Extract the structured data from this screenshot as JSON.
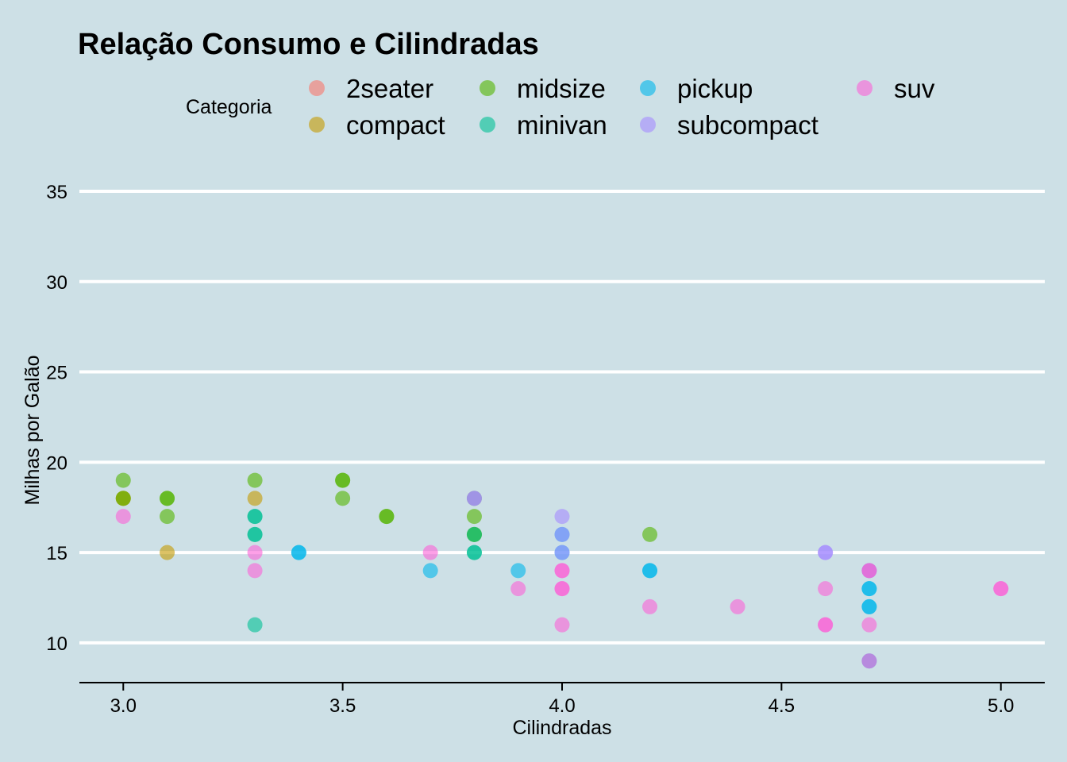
{
  "chart_data": {
    "type": "scatter",
    "title": "Relação Consumo e Cilindradas",
    "xlabel": "Cilindradas",
    "ylabel": "Milhas por Galão",
    "xlim": [
      2.9,
      5.1
    ],
    "ylim": [
      7.8,
      36.8
    ],
    "x_ticks": [
      "3.0",
      "3.5",
      "4.0",
      "4.5",
      "5.0"
    ],
    "x_tick_values": [
      3.0,
      3.5,
      4.0,
      4.5,
      5.0
    ],
    "y_ticks": [
      "10",
      "15",
      "20",
      "25",
      "30",
      "35"
    ],
    "y_tick_values": [
      10,
      15,
      20,
      25,
      30,
      35
    ],
    "grid": "horizontal major lines",
    "background": "#cde0e6",
    "legend": {
      "title": "Categoria",
      "position": "top",
      "entries": [
        "2seater",
        "compact",
        "midsize",
        "minivan",
        "pickup",
        "subcompact",
        "suv"
      ]
    },
    "series": [
      {
        "name": "2seater",
        "color": "#F8766D",
        "points": []
      },
      {
        "name": "compact",
        "color": "#C49A00",
        "points": [
          [
            3.0,
            18
          ],
          [
            3.0,
            18
          ],
          [
            3.1,
            15
          ],
          [
            3.3,
            18
          ]
        ]
      },
      {
        "name": "midsize",
        "color": "#53B400",
        "points": [
          [
            3.0,
            19
          ],
          [
            3.0,
            18
          ],
          [
            3.1,
            18
          ],
          [
            3.1,
            18
          ],
          [
            3.1,
            17
          ],
          [
            3.3,
            19
          ],
          [
            3.5,
            19
          ],
          [
            3.5,
            19
          ],
          [
            3.5,
            18
          ],
          [
            3.6,
            17
          ],
          [
            3.6,
            17
          ],
          [
            3.8,
            18
          ],
          [
            3.8,
            17
          ],
          [
            3.8,
            16
          ],
          [
            3.8,
            16
          ],
          [
            4.2,
            16
          ]
        ]
      },
      {
        "name": "minivan",
        "color": "#00C094",
        "points": [
          [
            3.3,
            17
          ],
          [
            3.3,
            17
          ],
          [
            3.3,
            16
          ],
          [
            3.3,
            16
          ],
          [
            3.3,
            11
          ],
          [
            3.8,
            15
          ],
          [
            3.8,
            15
          ],
          [
            3.8,
            16
          ]
        ]
      },
      {
        "name": "pickup",
        "color": "#00B6EB",
        "points": [
          [
            3.4,
            15
          ],
          [
            3.4,
            15
          ],
          [
            3.7,
            14
          ],
          [
            3.9,
            14
          ],
          [
            4.0,
            15
          ],
          [
            4.0,
            16
          ],
          [
            4.2,
            14
          ],
          [
            4.2,
            14
          ],
          [
            4.7,
            13
          ],
          [
            4.7,
            13
          ],
          [
            4.7,
            12
          ],
          [
            4.7,
            12
          ],
          [
            4.7,
            14
          ],
          [
            4.7,
            9
          ]
        ]
      },
      {
        "name": "subcompact",
        "color": "#A58AFF",
        "points": [
          [
            3.8,
            18
          ],
          [
            3.8,
            18
          ],
          [
            4.0,
            17
          ],
          [
            4.0,
            16
          ],
          [
            4.0,
            15
          ],
          [
            4.6,
            15
          ],
          [
            4.6,
            15
          ]
        ]
      },
      {
        "name": "suv",
        "color": "#FB61D7",
        "points": [
          [
            3.0,
            17
          ],
          [
            3.3,
            15
          ],
          [
            3.3,
            14
          ],
          [
            3.7,
            15
          ],
          [
            3.9,
            13
          ],
          [
            4.0,
            14
          ],
          [
            4.0,
            14
          ],
          [
            4.0,
            13
          ],
          [
            4.0,
            13
          ],
          [
            4.0,
            11
          ],
          [
            4.2,
            12
          ],
          [
            4.4,
            12
          ],
          [
            4.6,
            13
          ],
          [
            4.6,
            11
          ],
          [
            4.6,
            11
          ],
          [
            4.7,
            14
          ],
          [
            4.7,
            14
          ],
          [
            4.7,
            11
          ],
          [
            4.7,
            9
          ],
          [
            5.0,
            13
          ],
          [
            5.0,
            13
          ]
        ]
      }
    ]
  }
}
